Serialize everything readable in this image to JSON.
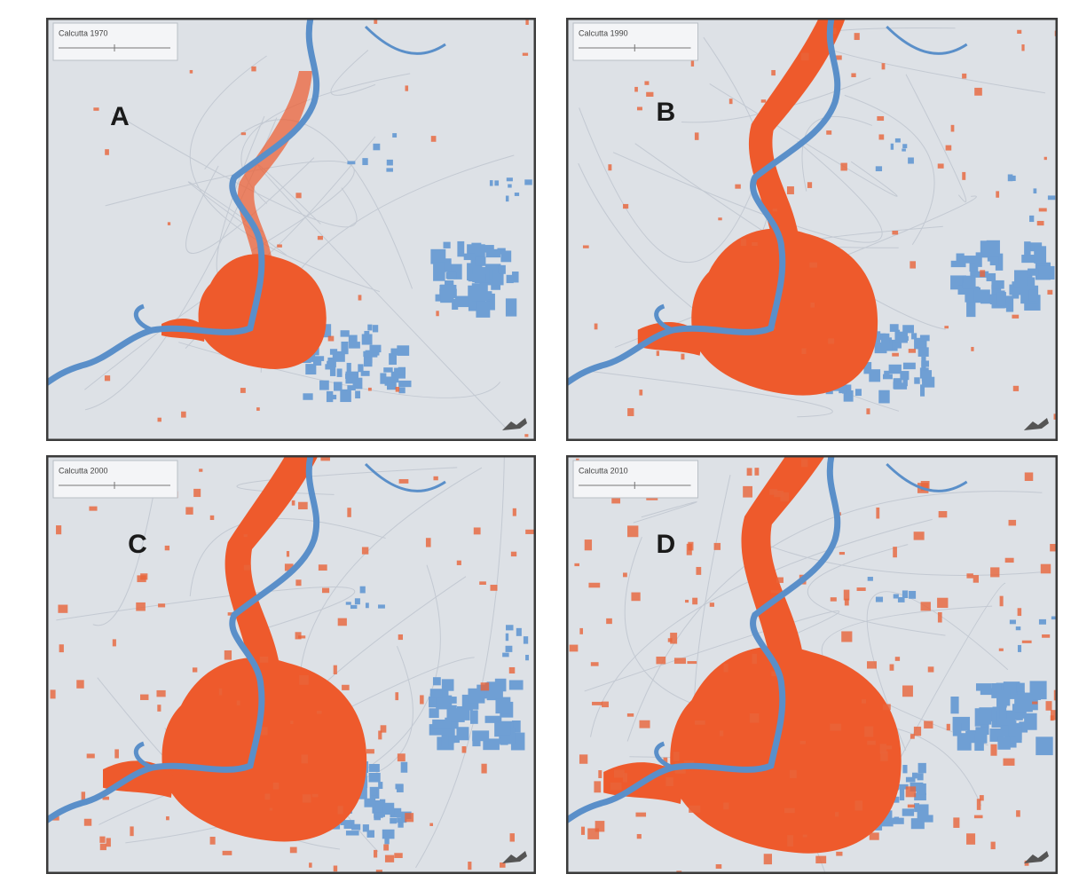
{
  "panels": [
    {
      "label": "A",
      "legend_title": "Calcutta 1970"
    },
    {
      "label": "B",
      "legend_title": "Calcutta 1990"
    },
    {
      "label": "C",
      "legend_title": "Calcutta 2000"
    },
    {
      "label": "D",
      "legend_title": "Calcutta 2010"
    }
  ]
}
